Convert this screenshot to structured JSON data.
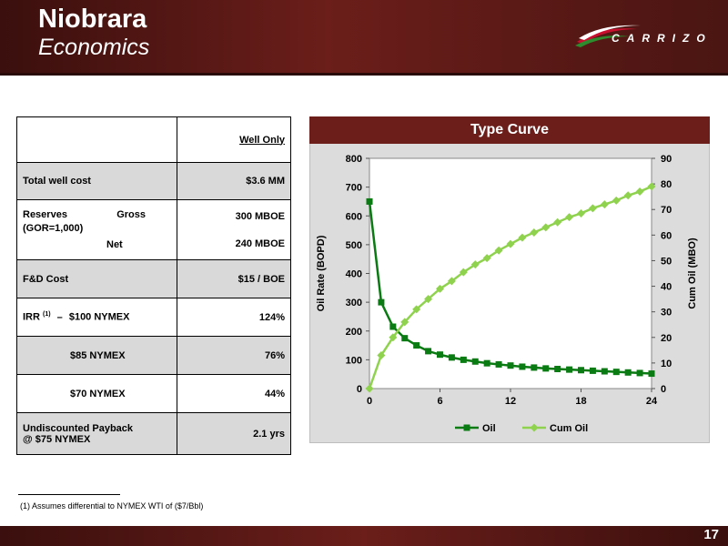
{
  "header": {
    "title": "Niobrara",
    "subtitle": "Economics",
    "logo_text": "CARRIZO"
  },
  "table": {
    "col_header": "Well Only",
    "rows": [
      {
        "label": "Total well cost",
        "value": "$3.6 MM"
      },
      {
        "label": "Reserves",
        "label_b": "(GOR=1,000)",
        "sub1": "Gross",
        "val1": "300 MBOE",
        "sub2": "Net",
        "val2": "240 MBOE"
      },
      {
        "label": "F&D Cost",
        "value": "$15 / BOE"
      },
      {
        "label": "IRR",
        "sup": "(1)",
        "dash": "–",
        "sub": "$100 NYMEX",
        "value": "124%"
      },
      {
        "label": "$85 NYMEX",
        "value": "76%"
      },
      {
        "label": "$70 NYMEX",
        "value": "44%"
      },
      {
        "label": "Undiscounted Payback @ $75 NYMEX",
        "value": "2.1 yrs"
      }
    ]
  },
  "chart_data": {
    "type": "line",
    "title": "Type Curve",
    "x": [
      0,
      1,
      2,
      3,
      4,
      5,
      6,
      7,
      8,
      9,
      10,
      11,
      12,
      13,
      14,
      15,
      16,
      17,
      18,
      19,
      20,
      21,
      22,
      23,
      24
    ],
    "series": [
      {
        "name": "Oil",
        "axis": "left",
        "color": "#0a7a12",
        "values": [
          650,
          300,
          215,
          175,
          150,
          130,
          118,
          108,
          100,
          94,
          88,
          84,
          80,
          76,
          73,
          70,
          68,
          66,
          64,
          62,
          60,
          58,
          56,
          54,
          52
        ]
      },
      {
        "name": "Cum Oil",
        "axis": "right",
        "color": "#8fd24e",
        "values": [
          0,
          13,
          20,
          26,
          31,
          35,
          39,
          42,
          45.5,
          48.5,
          51,
          54,
          56.5,
          59,
          61,
          63,
          65,
          67,
          68.5,
          70.5,
          72,
          73.5,
          75.5,
          77,
          79
        ]
      }
    ],
    "xlim": [
      0,
      24
    ],
    "xticks": [
      "0",
      "6",
      "12",
      "18",
      "24"
    ],
    "ylabel": "Oil Rate (BOPD)",
    "ylim": [
      0,
      800
    ],
    "yticks": [
      "0",
      "100",
      "200",
      "300",
      "400",
      "500",
      "600",
      "700",
      "800"
    ],
    "y2label": "Cum Oil (MBO)",
    "y2lim": [
      0,
      90
    ],
    "y2ticks": [
      "0",
      "10",
      "20",
      "30",
      "40",
      "50",
      "60",
      "70",
      "80",
      "90"
    ],
    "legend": "bottom"
  },
  "footnote": "(1)    Assumes differential to NYMEX WTI of ($7/Bbl)",
  "page_number": "17"
}
